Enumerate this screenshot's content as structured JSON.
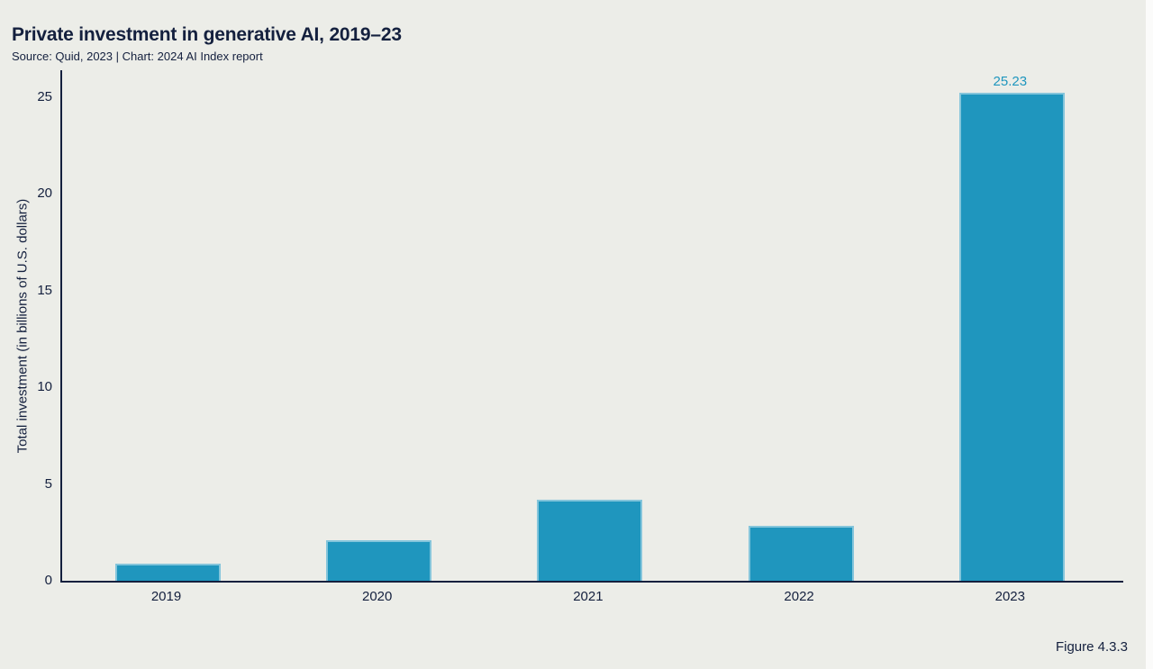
{
  "header": {
    "title": "Private investment in generative AI, 2019–23",
    "subtitle": "Source: Quid, 2023 | Chart: 2024 AI Index report"
  },
  "footer": {
    "figure_label": "Figure 4.3.3"
  },
  "colors": {
    "background": "#ECEDE8",
    "bar_fill": "#1F96BE",
    "value_label": "#1F96BE",
    "axis": "#14203E",
    "text": "#14203E"
  },
  "chart_data": {
    "type": "bar",
    "title": "Private investment in generative AI, 2019–23",
    "subtitle": "Source: Quid, 2023 | Chart: 2024 AI Index report",
    "categories": [
      "2019",
      "2020",
      "2021",
      "2022",
      "2023"
    ],
    "values": [
      0.9,
      2.1,
      4.2,
      2.85,
      25.23
    ],
    "value_labels": [
      "",
      "",
      "",
      "",
      "25.23"
    ],
    "xlabel": "",
    "ylabel": "Total investment (in billions of U.S. dollars)",
    "yticks": [
      0,
      5,
      10,
      15,
      20,
      25
    ],
    "ylim": [
      0,
      26.4
    ],
    "grid": false,
    "legend_position": "none"
  }
}
